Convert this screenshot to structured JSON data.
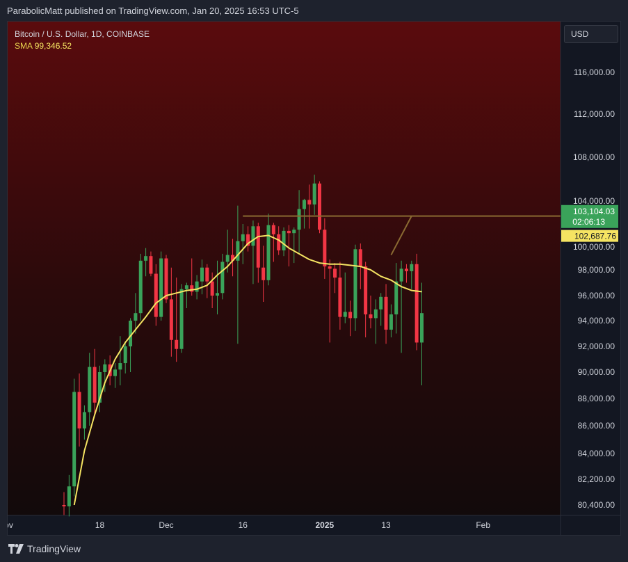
{
  "header": {
    "published_text": "ParabolicMatt published on TradingView.com, Jan 20, 2025 16:53 UTC-5"
  },
  "legend": {
    "title": "Bitcoin / U.S. Dollar, 1D, COINBASE",
    "sma_label": "SMA",
    "sma_value": "99,346.52"
  },
  "currency": "USD",
  "footer": {
    "brand": "TradingView"
  },
  "colors": {
    "up": "#3aa35a",
    "down": "#f23645",
    "sma": "#f5e462",
    "resistance": "#8a6a32",
    "bg_top": "#5a0b0d",
    "bg_bottom": "#120a0b"
  },
  "chart_data": {
    "type": "candlestick",
    "symbol": "Bitcoin / U.S. Dollar, 1D, COINBASE",
    "ylim": [
      79600,
      120500
    ],
    "y_ticks": [
      {
        "label": "116,000.00",
        "value": 116000
      },
      {
        "label": "112,000.00",
        "value": 112000
      },
      {
        "label": "108,000.00",
        "value": 108000
      },
      {
        "label": "104,000.00",
        "value": 104000
      },
      {
        "label": "100,000.00",
        "value": 100000
      },
      {
        "label": "98,000.00",
        "value": 98000
      },
      {
        "label": "96,000.00",
        "value": 96000
      },
      {
        "label": "94,000.00",
        "value": 94000
      },
      {
        "label": "92,000.00",
        "value": 92000
      },
      {
        "label": "90,000.00",
        "value": 90000
      },
      {
        "label": "88,000.00",
        "value": 88000
      },
      {
        "label": "86,000.00",
        "value": 86000
      },
      {
        "label": "84,000.00",
        "value": 84000
      },
      {
        "label": "82,200.00",
        "value": 82200
      },
      {
        "label": "80,400.00",
        "value": 80400
      }
    ],
    "x_ticks": [
      {
        "label": "lov",
        "index": -11
      },
      {
        "label": "18",
        "index": 7
      },
      {
        "label": "Dec",
        "index": 20
      },
      {
        "label": "16",
        "index": 35
      },
      {
        "label": "2025",
        "index": 51,
        "bold": true
      },
      {
        "label": "13",
        "index": 63
      },
      {
        "label": "Feb",
        "index": 82
      }
    ],
    "candles": [
      {
        "d": "2024-11-11",
        "o": 80400,
        "h": 81300,
        "l": 79700,
        "c": 80300
      },
      {
        "d": "2024-11-12",
        "o": 80300,
        "h": 82500,
        "l": 79600,
        "c": 81700
      },
      {
        "d": "2024-11-13",
        "o": 81700,
        "h": 89500,
        "l": 81000,
        "c": 88500
      },
      {
        "d": "2024-11-14",
        "o": 88500,
        "h": 89900,
        "l": 84500,
        "c": 85800
      },
      {
        "d": "2024-11-15",
        "o": 85800,
        "h": 87500,
        "l": 85000,
        "c": 87000
      },
      {
        "d": "2024-11-16",
        "o": 87000,
        "h": 91500,
        "l": 86000,
        "c": 90400
      },
      {
        "d": "2024-11-17",
        "o": 90400,
        "h": 91800,
        "l": 86800,
        "c": 87700
      },
      {
        "d": "2024-11-18",
        "o": 87700,
        "h": 90500,
        "l": 87000,
        "c": 90000
      },
      {
        "d": "2024-11-19",
        "o": 90000,
        "h": 91000,
        "l": 88500,
        "c": 90600
      },
      {
        "d": "2024-11-20",
        "o": 90600,
        "h": 91300,
        "l": 89000,
        "c": 89700
      },
      {
        "d": "2024-11-21",
        "o": 89700,
        "h": 90700,
        "l": 88800,
        "c": 90200
      },
      {
        "d": "2024-11-22",
        "o": 90200,
        "h": 92800,
        "l": 89000,
        "c": 90700
      },
      {
        "d": "2024-11-23",
        "o": 90700,
        "h": 92400,
        "l": 89900,
        "c": 92000
      },
      {
        "d": "2024-11-24",
        "o": 92000,
        "h": 94200,
        "l": 90000,
        "c": 94000
      },
      {
        "d": "2024-11-25",
        "o": 94000,
        "h": 96200,
        "l": 93000,
        "c": 94600
      },
      {
        "d": "2024-11-26",
        "o": 94600,
        "h": 99400,
        "l": 94000,
        "c": 98800
      },
      {
        "d": "2024-11-27",
        "o": 98800,
        "h": 99900,
        "l": 97500,
        "c": 99200
      },
      {
        "d": "2024-11-28",
        "o": 99200,
        "h": 99600,
        "l": 97500,
        "c": 97700
      },
      {
        "d": "2024-11-29",
        "o": 97700,
        "h": 98500,
        "l": 93600,
        "c": 94300
      },
      {
        "d": "2024-11-30",
        "o": 94300,
        "h": 99600,
        "l": 94000,
        "c": 99000
      },
      {
        "d": "2024-12-01",
        "o": 99000,
        "h": 99300,
        "l": 95400,
        "c": 95700
      },
      {
        "d": "2024-12-02",
        "o": 95700,
        "h": 98200,
        "l": 91200,
        "c": 92500
      },
      {
        "d": "2024-12-03",
        "o": 92500,
        "h": 97400,
        "l": 90800,
        "c": 91800
      },
      {
        "d": "2024-12-04",
        "o": 91800,
        "h": 96900,
        "l": 91500,
        "c": 96500
      },
      {
        "d": "2024-12-05",
        "o": 96500,
        "h": 97000,
        "l": 95000,
        "c": 96800
      },
      {
        "d": "2024-12-06",
        "o": 96800,
        "h": 99000,
        "l": 96000,
        "c": 96300
      },
      {
        "d": "2024-12-07",
        "o": 96300,
        "h": 97600,
        "l": 95700,
        "c": 97100
      },
      {
        "d": "2024-12-08",
        "o": 97100,
        "h": 98900,
        "l": 96100,
        "c": 98200
      },
      {
        "d": "2024-12-09",
        "o": 98200,
        "h": 98500,
        "l": 95800,
        "c": 97100
      },
      {
        "d": "2024-12-10",
        "o": 97100,
        "h": 97800,
        "l": 95000,
        "c": 96000
      },
      {
        "d": "2024-12-11",
        "o": 96000,
        "h": 98800,
        "l": 94500,
        "c": 96200
      },
      {
        "d": "2024-12-12",
        "o": 96200,
        "h": 99400,
        "l": 95700,
        "c": 98700
      },
      {
        "d": "2024-12-13",
        "o": 98700,
        "h": 101500,
        "l": 97800,
        "c": 99300
      },
      {
        "d": "2024-12-14",
        "o": 99300,
        "h": 100700,
        "l": 97500,
        "c": 98800
      },
      {
        "d": "2024-12-15",
        "o": 98800,
        "h": 103600,
        "l": 92200,
        "c": 100500
      },
      {
        "d": "2024-12-16",
        "o": 100500,
        "h": 102000,
        "l": 98500,
        "c": 101100
      },
      {
        "d": "2024-12-17",
        "o": 101100,
        "h": 101800,
        "l": 99600,
        "c": 100100
      },
      {
        "d": "2024-12-18",
        "o": 100100,
        "h": 102300,
        "l": 96900,
        "c": 101800
      },
      {
        "d": "2024-12-19",
        "o": 101800,
        "h": 102100,
        "l": 97000,
        "c": 98200
      },
      {
        "d": "2024-12-20",
        "o": 98200,
        "h": 100100,
        "l": 95500,
        "c": 97200
      },
      {
        "d": "2024-12-21",
        "o": 97200,
        "h": 102900,
        "l": 96800,
        "c": 101900
      },
      {
        "d": "2024-12-22",
        "o": 101900,
        "h": 102100,
        "l": 98700,
        "c": 101100
      },
      {
        "d": "2024-12-23",
        "o": 101100,
        "h": 101800,
        "l": 99300,
        "c": 99700
      },
      {
        "d": "2024-12-24",
        "o": 99700,
        "h": 101700,
        "l": 99200,
        "c": 101400
      },
      {
        "d": "2024-12-25",
        "o": 101400,
        "h": 101900,
        "l": 98300,
        "c": 101200
      },
      {
        "d": "2024-12-26",
        "o": 101200,
        "h": 101700,
        "l": 98600,
        "c": 101500
      },
      {
        "d": "2024-12-27",
        "o": 101500,
        "h": 105000,
        "l": 99500,
        "c": 103300
      },
      {
        "d": "2024-12-28",
        "o": 103300,
        "h": 104200,
        "l": 101600,
        "c": 104100
      },
      {
        "d": "2024-12-29",
        "o": 104100,
        "h": 105500,
        "l": 101600,
        "c": 103700
      },
      {
        "d": "2024-12-30",
        "o": 103700,
        "h": 106400,
        "l": 102800,
        "c": 105600
      },
      {
        "d": "2024-12-31",
        "o": 105600,
        "h": 105800,
        "l": 101200,
        "c": 101500
      },
      {
        "d": "2025-01-01",
        "o": 101500,
        "h": 102500,
        "l": 97300,
        "c": 98300
      },
      {
        "d": "2025-01-02",
        "o": 98300,
        "h": 98900,
        "l": 92300,
        "c": 98100
      },
      {
        "d": "2025-01-03",
        "o": 98100,
        "h": 98600,
        "l": 96200,
        "c": 97400
      },
      {
        "d": "2025-01-04",
        "o": 97400,
        "h": 98700,
        "l": 93300,
        "c": 94300
      },
      {
        "d": "2025-01-05",
        "o": 94300,
        "h": 97800,
        "l": 93800,
        "c": 94700
      },
      {
        "d": "2025-01-06",
        "o": 94700,
        "h": 95600,
        "l": 92800,
        "c": 94200
      },
      {
        "d": "2025-01-07",
        "o": 94200,
        "h": 100200,
        "l": 93200,
        "c": 99800
      },
      {
        "d": "2025-01-08",
        "o": 99800,
        "h": 100300,
        "l": 96500,
        "c": 98300
      },
      {
        "d": "2025-01-09",
        "o": 98300,
        "h": 98700,
        "l": 92700,
        "c": 94500
      },
      {
        "d": "2025-01-10",
        "o": 94500,
        "h": 96000,
        "l": 93400,
        "c": 94200
      },
      {
        "d": "2025-01-11",
        "o": 94200,
        "h": 95700,
        "l": 92200,
        "c": 94900
      },
      {
        "d": "2025-01-12",
        "o": 94900,
        "h": 96200,
        "l": 93600,
        "c": 95900
      },
      {
        "d": "2025-01-13",
        "o": 95900,
        "h": 96900,
        "l": 92200,
        "c": 93300
      },
      {
        "d": "2025-01-14",
        "o": 93300,
        "h": 95300,
        "l": 92700,
        "c": 94500
      },
      {
        "d": "2025-01-15",
        "o": 94500,
        "h": 98600,
        "l": 93000,
        "c": 97100
      },
      {
        "d": "2025-01-16",
        "o": 97100,
        "h": 98800,
        "l": 91500,
        "c": 98100
      },
      {
        "d": "2025-01-17",
        "o": 98100,
        "h": 98500,
        "l": 97000,
        "c": 97900
      },
      {
        "d": "2025-01-18",
        "o": 97900,
        "h": 98800,
        "l": 96500,
        "c": 98500
      },
      {
        "d": "2025-01-19",
        "o": 98500,
        "h": 99400,
        "l": 91700,
        "c": 92300
      },
      {
        "d": "2025-01-20",
        "o": 92300,
        "h": 97000,
        "l": 89000,
        "c": 94600
      }
    ],
    "sma": {
      "name": "SMA",
      "x": [
        2,
        4,
        6,
        8,
        10,
        12,
        14,
        16,
        18,
        20,
        22,
        24,
        26,
        28,
        30,
        32,
        34,
        36,
        38,
        40,
        42,
        44,
        46,
        48,
        50,
        52,
        54,
        56,
        58,
        60,
        62,
        64,
        66,
        68,
        70
      ],
      "values": [
        80400,
        84200,
        86800,
        89200,
        91000,
        92300,
        93300,
        94300,
        95400,
        96000,
        96200,
        96400,
        96500,
        96800,
        97600,
        98300,
        99300,
        100300,
        100900,
        101000,
        100600,
        99900,
        99400,
        98900,
        98600,
        98500,
        98500,
        98400,
        98300,
        98000,
        97500,
        97200,
        96700,
        96400,
        96300
      ]
    },
    "resistance": {
      "price": 102690,
      "from_index": 35,
      "to_index": 68
    },
    "ascending_line": {
      "from": {
        "index": 64,
        "price": 99300
      },
      "to": {
        "index": 68,
        "price": 102690
      }
    },
    "price_labels": [
      {
        "name": "last-price",
        "value": 103104.03,
        "text": "103,104.03",
        "sub": "02:06:13"
      },
      {
        "name": "sma-price",
        "value": 102687.76,
        "text": "102,687.76"
      }
    ]
  }
}
